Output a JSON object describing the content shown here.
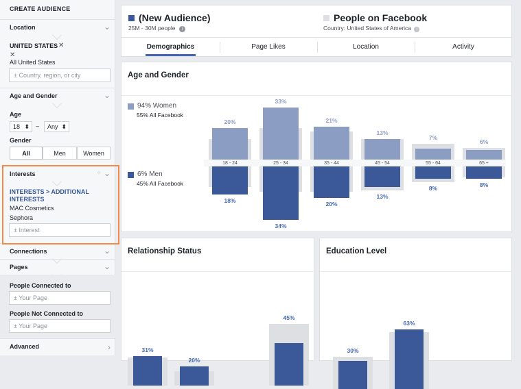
{
  "sidebar": {
    "title": "CREATE AUDIENCE",
    "location": {
      "label": "Location",
      "country": "UNITED STATES",
      "remove": "✕",
      "sub_remove": "✕",
      "all": "All United States",
      "placeholder": "Country, region, or city"
    },
    "age_gender": {
      "label": "Age and Gender",
      "age_label": "Age",
      "age_from": "18",
      "age_to": "Any",
      "gender_label": "Gender",
      "genders": [
        "All",
        "Men",
        "Women"
      ],
      "selected_gender": "All"
    },
    "interests": {
      "label": "Interests",
      "path": "INTERESTS > ADDITIONAL INTERESTS",
      "items": [
        "MAC Cosmetics",
        "Sephora"
      ],
      "placeholder": "Interest"
    },
    "connections": {
      "label": "Connections"
    },
    "pages": {
      "label": "Pages",
      "connected_label": "People Connected to",
      "connected_placeholder": "Your Page",
      "not_connected_label": "People Not Connected to",
      "not_connected_placeholder": "Your Page"
    },
    "advanced": {
      "label": "Advanced"
    }
  },
  "header": {
    "audience_title": "(New Audience)",
    "audience_size": "25M - 30M people",
    "compare_title": "People on Facebook",
    "compare_sub": "Country: United States of America",
    "audience_color": "#3b5998",
    "compare_color": "#dddfe2"
  },
  "tabs": [
    "Demographics",
    "Page Likes",
    "Location",
    "Activity"
  ],
  "active_tab": "Demographics",
  "age_gender_card": {
    "title": "Age and Gender",
    "women_label": "94% Women",
    "women_sub": "55% All Facebook",
    "men_label": "6% Men",
    "men_sub": "45% All Facebook"
  },
  "relationship_card": {
    "title": "Relationship Status"
  },
  "education_card": {
    "title": "Education Level"
  },
  "chart_data": [
    {
      "type": "bar",
      "title": "Age and Gender",
      "categories": [
        "18 - 24",
        "25 - 34",
        "35 - 44",
        "45 - 54",
        "55 - 64",
        "65 +"
      ],
      "series": [
        {
          "name": "94% Women",
          "values": [
            20,
            33,
            21,
            13,
            7,
            6
          ],
          "baseline": [
            13,
            20,
            18,
            13,
            10,
            7.5
          ],
          "color": "#8b9dc3"
        },
        {
          "name": "6% Men",
          "values": [
            18,
            34,
            20,
            13,
            8,
            8
          ],
          "baseline": [
            13,
            16,
            16,
            15,
            10,
            7
          ],
          "color": "#3b5998"
        }
      ]
    },
    {
      "type": "bar",
      "title": "Relationship Status",
      "values": [
        31,
        20,
        45
      ],
      "baseline": [
        30,
        15,
        65
      ],
      "color": "#3b5998"
    },
    {
      "type": "bar",
      "title": "Education Level",
      "values": [
        30,
        63
      ],
      "baseline": [
        34,
        60
      ],
      "color": "#3b5998"
    }
  ]
}
